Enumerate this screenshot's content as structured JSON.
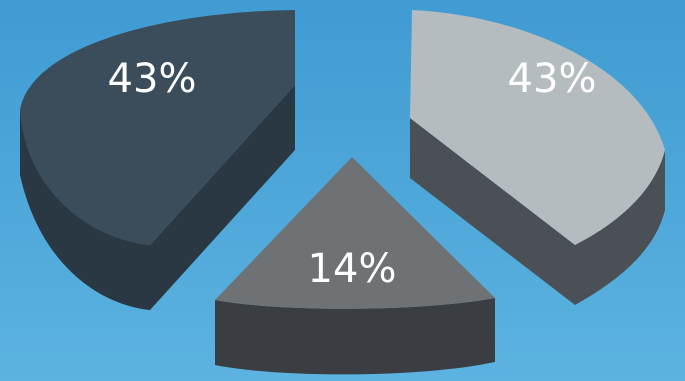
{
  "chart_data": {
    "type": "pie",
    "style": "3d-exploded",
    "slices": [
      {
        "label": "43%",
        "value": 43,
        "color": "#3b4d5a",
        "side_color": "#2a3844"
      },
      {
        "label": "43%",
        "value": 43,
        "color": "#b4bcbf",
        "side_color": "#4a5056"
      },
      {
        "label": "14%",
        "value": 14,
        "color": "#6e7275",
        "side_color": "#3a3e42"
      }
    ],
    "background_color": "#4aa3d6"
  }
}
